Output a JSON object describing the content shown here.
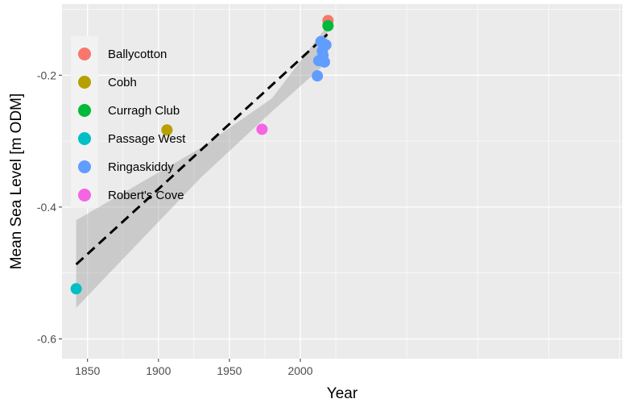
{
  "chart_data": {
    "type": "scatter",
    "xlabel": "Year",
    "ylabel": "Mean Sea Level [m ODM]",
    "xlim": [
      1832,
      2227
    ],
    "ylim": [
      -0.63,
      -0.092
    ],
    "x_ticks": [
      1850,
      1900,
      1950,
      2000
    ],
    "y_ticks": [
      -0.6,
      -0.4,
      -0.2
    ],
    "x_tick_labels": [
      "1850",
      "1900",
      "1950",
      "2000"
    ],
    "y_tick_labels": [
      "-0.6",
      "-0.4",
      "-0.2"
    ],
    "grid": true,
    "legend_position": "top-left",
    "series": [
      {
        "name": "Ballycotton",
        "color": "#F8766D",
        "points": [
          [
            2019.5,
            -0.117
          ]
        ]
      },
      {
        "name": "Cobh",
        "color": "#B79F00",
        "points": [
          [
            1906,
            -0.283
          ]
        ]
      },
      {
        "name": "Curragh Club",
        "color": "#00BA38",
        "points": [
          [
            2019.5,
            -0.125
          ]
        ]
      },
      {
        "name": "Passage West",
        "color": "#00BFC4",
        "points": [
          [
            1842,
            -0.524
          ]
        ]
      },
      {
        "name": "Ringaskiddy",
        "color": "#619CFF",
        "points": [
          [
            2014.5,
            -0.149
          ],
          [
            2018,
            -0.154
          ],
          [
            2015.5,
            -0.163
          ],
          [
            2016,
            -0.17
          ],
          [
            2013,
            -0.178
          ],
          [
            2017,
            -0.18
          ],
          [
            2012,
            -0.201
          ]
        ]
      },
      {
        "name": "Robert's Cove",
        "color": "#F564E3",
        "points": [
          [
            1973,
            -0.282
          ]
        ]
      }
    ],
    "trend": {
      "style": "dashed",
      "color": "#000000",
      "points": [
        [
          1842,
          -0.487
        ],
        [
          2019,
          -0.138
        ]
      ],
      "band": {
        "color": "#999999",
        "upper": [
          [
            1842,
            -0.42
          ],
          [
            1930,
            -0.31
          ],
          [
            1980,
            -0.235
          ],
          [
            2019,
            -0.125
          ]
        ],
        "lower": [
          [
            2019,
            -0.18
          ],
          [
            1980,
            -0.255
          ],
          [
            1930,
            -0.355
          ],
          [
            1842,
            -0.553
          ]
        ]
      }
    }
  }
}
